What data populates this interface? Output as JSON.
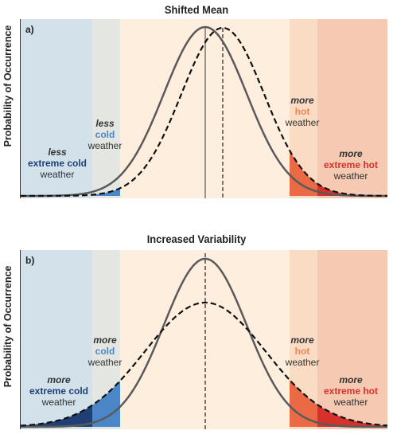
{
  "y_axis_label": "Probability of Occurrence",
  "colors": {
    "extreme_cold_fill": "#d2e1ea",
    "cold_fill": "#e4e6e2",
    "normal_fill": "#fdeede",
    "hot_fill": "#f9dcc3",
    "extreme_hot_fill": "#f5c9b2",
    "extreme_cold_text": "#1f3f75",
    "cold_text": "#4a86c8",
    "hot_text": "#ef8557",
    "extreme_hot_text": "#d6322b",
    "curve": "#555555"
  },
  "panels": [
    {
      "title": "Shifted Mean",
      "label": "a)",
      "annotations": {
        "extreme_cold": {
          "qualifier": "less",
          "category": "extreme cold",
          "suffix": "weather"
        },
        "cold": {
          "qualifier": "less",
          "category": "cold",
          "suffix": "weather"
        },
        "hot": {
          "qualifier": "more",
          "category": "hot",
          "suffix": "weather"
        },
        "extreme_hot": {
          "qualifier": "more",
          "category": "extreme hot",
          "suffix": "weather"
        }
      }
    },
    {
      "title": "Increased Variability",
      "label": "b)",
      "annotations": {
        "extreme_cold": {
          "qualifier": "more",
          "category": "extreme cold",
          "suffix": "weather"
        },
        "cold": {
          "qualifier": "more",
          "category": "cold",
          "suffix": "weather"
        },
        "hot": {
          "qualifier": "more",
          "category": "hot",
          "suffix": "weather"
        },
        "extreme_hot": {
          "qualifier": "more",
          "category": "extreme hot",
          "suffix": "weather"
        }
      }
    }
  ]
}
